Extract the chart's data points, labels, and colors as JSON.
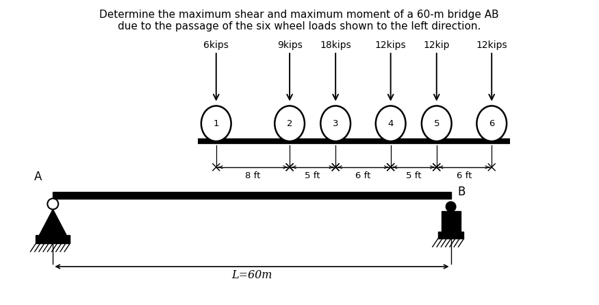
{
  "title_line1": "Determine the maximum shear and maximum moment of a 60-m bridge AB",
  "title_line2": "due to the passage of the six wheel loads shown to the left direction.",
  "loads": [
    "6kips",
    "9kips",
    "18kips",
    "12kips",
    "12kip",
    "12kips"
  ],
  "wheel_numbers": [
    1,
    2,
    3,
    4,
    5,
    6
  ],
  "spacings": [
    8,
    5,
    6,
    5,
    6
  ],
  "spacing_labels": [
    "8 ft",
    "5 ft",
    "6 ft",
    "5 ft",
    "6 ft"
  ],
  "bridge_label": "L=60m",
  "support_A_label": "A",
  "support_B_label": "B",
  "bg_color": "#ffffff",
  "line_color": "#000000",
  "title_fontsize": 11.0,
  "load_fontsize": 10.0,
  "dim_fontsize": 9.5
}
